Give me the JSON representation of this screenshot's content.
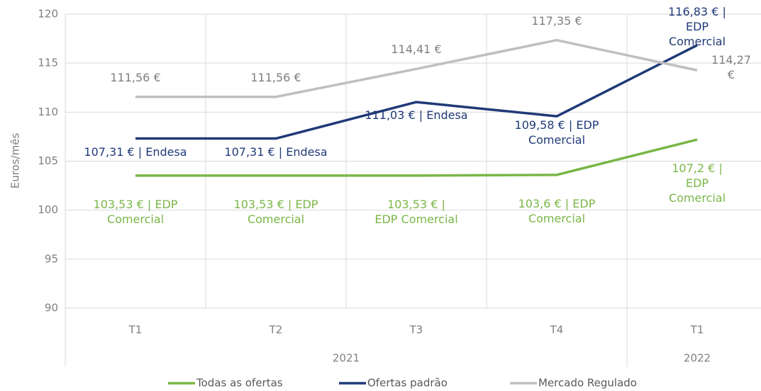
{
  "chart_data": {
    "type": "line",
    "y_label": "Euros/mês",
    "groups": [
      {
        "label": "2021",
        "categories": [
          "T1",
          "T2",
          "T3",
          "T4"
        ]
      },
      {
        "label": "2022",
        "categories": [
          "T1"
        ]
      }
    ],
    "series": [
      {
        "name": "Todas as ofertas",
        "color": "#7ab648",
        "values": [
          103.53,
          103.53,
          103.53,
          103.6,
          107.2
        ],
        "value_labels": [
          "103,53 € | EDP\nComercial",
          "103,53 € | EDP\nComercial",
          "103,53 € |\nEDP Comercial",
          "103,6 € | EDP\nComercial",
          "107,2 € |\nEDP\nComercial"
        ]
      },
      {
        "name": "Ofertas padrão",
        "color": "#203a78",
        "values": [
          107.31,
          107.31,
          111.03,
          109.58,
          116.83
        ],
        "value_labels": [
          "107,31 € | Endesa",
          "107,31 € | Endesa",
          "111,03 € | Endesa",
          "109,58 € | EDP\nComercial",
          "116,83 € | EDP\nComercial"
        ]
      },
      {
        "name": "Mercado Regulado",
        "color": "#bfbfbf",
        "values": [
          111.56,
          111.56,
          114.41,
          117.35,
          114.27
        ],
        "value_labels": [
          "111,56 €",
          "111,56 €",
          "114,41 €",
          "117,35 €",
          "114,27 €"
        ]
      }
    ],
    "ylim": [
      90,
      120
    ],
    "yticks": [
      90,
      95,
      100,
      105,
      110,
      115,
      120
    ],
    "grid": true
  }
}
